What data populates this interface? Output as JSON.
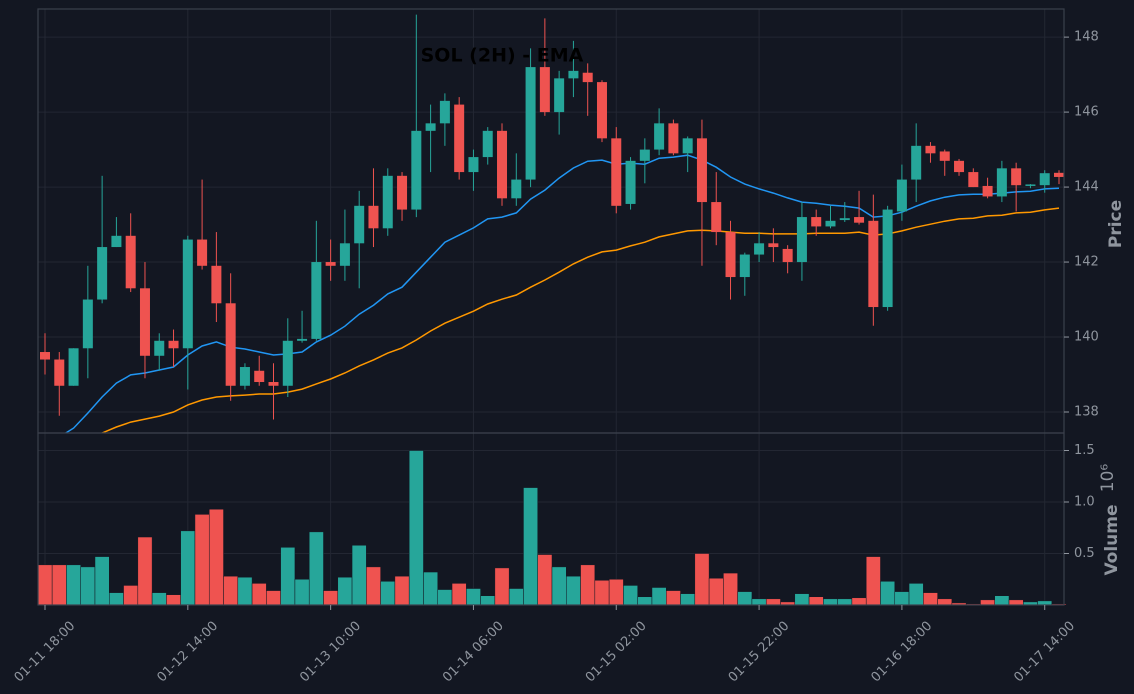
{
  "chart_data": {
    "type": "candlestick",
    "title": "SOL (2H) - EMA",
    "ylabel": "Price",
    "categories": [
      "01-11 18:00",
      null,
      null,
      null,
      null,
      null,
      null,
      null,
      null,
      null,
      "01-12 14:00",
      null,
      null,
      null,
      null,
      null,
      null,
      null,
      null,
      null,
      "01-13 10:00",
      null,
      null,
      null,
      null,
      null,
      null,
      null,
      null,
      null,
      "01-14 06:00",
      null,
      null,
      null,
      null,
      null,
      null,
      null,
      null,
      null,
      "01-15 02:00",
      null,
      null,
      null,
      null,
      null,
      null,
      null,
      null,
      null,
      "01-15 22:00",
      null,
      null,
      null,
      null,
      null,
      null,
      null,
      null,
      null,
      "01-16 18:00",
      null,
      null,
      null,
      null,
      null,
      null,
      null,
      null,
      null,
      "01-17 14:00",
      null
    ],
    "open": [
      139.6,
      139.4,
      138.7,
      139.7,
      141.0,
      142.4,
      142.7,
      141.3,
      139.5,
      139.9,
      139.7,
      142.6,
      141.9,
      140.9,
      138.7,
      139.1,
      138.8,
      138.7,
      139.9,
      139.95,
      142.0,
      141.9,
      142.5,
      143.5,
      142.9,
      144.3,
      143.4,
      145.5,
      145.7,
      146.2,
      144.4,
      144.8,
      145.5,
      143.7,
      144.2,
      147.2,
      146.0,
      146.9,
      147.05,
      146.8,
      145.3,
      143.55,
      144.7,
      145.0,
      145.7,
      144.9,
      145.3,
      143.6,
      142.8,
      141.6,
      142.2,
      142.5,
      142.35,
      142.0,
      143.2,
      142.95,
      143.12,
      143.2,
      143.1,
      140.8,
      143.35,
      144.2,
      145.1,
      144.95,
      144.7,
      144.4,
      144.03,
      143.75,
      144.5,
      144.03,
      144.05,
      144.38
    ],
    "high": [
      140.1,
      139.6,
      139.7,
      141.9,
      144.3,
      143.2,
      143.3,
      142.0,
      140.1,
      140.2,
      142.7,
      144.2,
      142.8,
      141.7,
      139.3,
      139.5,
      139.3,
      140.5,
      140.7,
      143.1,
      142.6,
      143.4,
      143.9,
      144.5,
      144.5,
      144.4,
      148.6,
      146.2,
      146.5,
      146.4,
      145.0,
      145.6,
      145.7,
      144.9,
      147.7,
      148.5,
      147.1,
      147.9,
      147.3,
      146.85,
      145.6,
      144.8,
      145.3,
      146.1,
      145.8,
      145.35,
      145.8,
      144.4,
      143.1,
      142.25,
      142.8,
      142.9,
      142.45,
      143.6,
      143.4,
      143.5,
      143.6,
      143.9,
      143.8,
      143.5,
      144.6,
      145.7,
      145.2,
      145.0,
      144.75,
      144.5,
      144.25,
      144.7,
      144.65,
      144.08,
      144.45,
      144.45
    ],
    "low": [
      139.0,
      137.9,
      138.7,
      138.9,
      140.9,
      142.4,
      141.2,
      138.9,
      139.1,
      139.2,
      138.6,
      141.8,
      140.4,
      138.3,
      138.6,
      138.7,
      137.8,
      138.4,
      139.85,
      139.9,
      141.5,
      141.5,
      141.3,
      142.4,
      142.7,
      143.1,
      143.2,
      144.4,
      145.1,
      144.2,
      143.9,
      144.6,
      143.5,
      143.5,
      144.0,
      145.9,
      145.4,
      146.4,
      145.9,
      145.2,
      143.3,
      143.4,
      144.1,
      144.85,
      144.85,
      144.4,
      141.9,
      142.45,
      141.0,
      141.1,
      142.0,
      142.0,
      141.7,
      141.5,
      142.7,
      142.9,
      143.07,
      143.0,
      140.3,
      140.7,
      143.1,
      143.6,
      144.65,
      144.3,
      144.3,
      144.0,
      143.7,
      143.6,
      143.35,
      143.97,
      143.85,
      144.08
    ],
    "close": [
      139.4,
      138.7,
      139.7,
      141.0,
      142.4,
      142.7,
      141.3,
      139.5,
      139.9,
      139.7,
      142.6,
      141.9,
      140.9,
      138.7,
      139.2,
      138.8,
      138.7,
      139.9,
      139.95,
      142.0,
      141.9,
      142.5,
      143.5,
      142.9,
      144.3,
      143.4,
      145.5,
      145.7,
      146.3,
      144.4,
      144.8,
      145.5,
      143.7,
      144.2,
      147.2,
      146.0,
      146.9,
      147.1,
      146.8,
      145.3,
      143.5,
      144.7,
      145.0,
      145.7,
      144.9,
      145.3,
      143.6,
      142.8,
      141.6,
      142.2,
      142.5,
      142.4,
      142.0,
      143.2,
      142.95,
      143.1,
      143.17,
      143.05,
      140.8,
      143.4,
      144.2,
      145.1,
      144.9,
      144.7,
      144.4,
      144.0,
      143.75,
      144.5,
      144.05,
      144.07,
      144.37,
      144.27
    ],
    "up_color": "#26a69a",
    "down_color": "#ef5350",
    "series": [
      {
        "color": "#2196f3",
        "values": [
          137.12,
          137.33,
          137.57,
          137.97,
          138.4,
          138.77,
          138.99,
          139.04,
          139.12,
          139.2,
          139.52,
          139.76,
          139.87,
          139.73,
          139.68,
          139.6,
          139.52,
          139.55,
          139.6,
          139.87,
          140.05,
          140.29,
          140.61,
          140.85,
          141.15,
          141.33,
          141.73,
          142.13,
          142.53,
          142.72,
          142.91,
          143.15,
          143.2,
          143.31,
          143.68,
          143.92,
          144.24,
          144.51,
          144.69,
          144.72,
          144.61,
          144.64,
          144.61,
          144.77,
          144.8,
          144.85,
          144.72,
          144.53,
          144.27,
          144.08,
          143.95,
          143.84,
          143.71,
          143.6,
          143.57,
          143.52,
          143.49,
          143.44,
          143.2,
          143.23,
          143.33,
          143.49,
          143.63,
          143.73,
          143.79,
          143.81,
          143.81,
          143.84,
          143.87,
          143.89,
          143.95,
          143.97
        ]
      },
      {
        "color": "#ff9800",
        "values": [
          136.85,
          136.99,
          137.12,
          137.25,
          137.44,
          137.6,
          137.73,
          137.81,
          137.89,
          138.0,
          138.19,
          138.32,
          138.4,
          138.43,
          138.45,
          138.48,
          138.48,
          138.53,
          138.61,
          138.75,
          138.88,
          139.04,
          139.23,
          139.39,
          139.57,
          139.71,
          139.92,
          140.16,
          140.37,
          140.53,
          140.69,
          140.88,
          141.01,
          141.12,
          141.33,
          141.52,
          141.73,
          141.95,
          142.13,
          142.27,
          142.32,
          142.43,
          142.53,
          142.67,
          142.75,
          142.83,
          142.85,
          142.83,
          142.8,
          142.77,
          142.77,
          142.75,
          142.75,
          142.75,
          142.77,
          142.77,
          142.77,
          142.8,
          142.72,
          142.75,
          142.83,
          142.93,
          143.01,
          143.09,
          143.15,
          143.17,
          143.23,
          143.25,
          143.31,
          143.33,
          143.39,
          143.44
        ]
      }
    ],
    "ylim": [
      137.44,
      148.75
    ],
    "yticks": [
      138,
      140,
      142,
      144,
      146,
      148
    ],
    "grid": true,
    "volume": {
      "ylabel": "Volume",
      "offset_label": "10⁶",
      "values": [
        0.39,
        0.39,
        0.39,
        0.37,
        0.47,
        0.12,
        0.19,
        0.66,
        0.12,
        0.1,
        0.72,
        0.88,
        0.93,
        0.28,
        0.27,
        0.21,
        0.14,
        0.56,
        0.25,
        0.71,
        0.14,
        0.27,
        0.58,
        0.37,
        0.23,
        0.28,
        1.5,
        0.32,
        0.15,
        0.21,
        0.16,
        0.09,
        0.36,
        0.16,
        1.14,
        0.49,
        0.37,
        0.28,
        0.39,
        0.24,
        0.25,
        0.19,
        0.08,
        0.17,
        0.14,
        0.11,
        0.5,
        0.26,
        0.31,
        0.13,
        0.06,
        0.06,
        0.03,
        0.11,
        0.08,
        0.06,
        0.06,
        0.07,
        0.47,
        0.23,
        0.13,
        0.21,
        0.12,
        0.06,
        0.02,
        0.01,
        0.05,
        0.09,
        0.05,
        0.03,
        0.04,
        0.01
      ],
      "ylim": [
        0,
        1.67
      ],
      "yticks": [
        0.5,
        {
          "value": 1,
          "label": "1.0"
        },
        1.5
      ]
    }
  }
}
